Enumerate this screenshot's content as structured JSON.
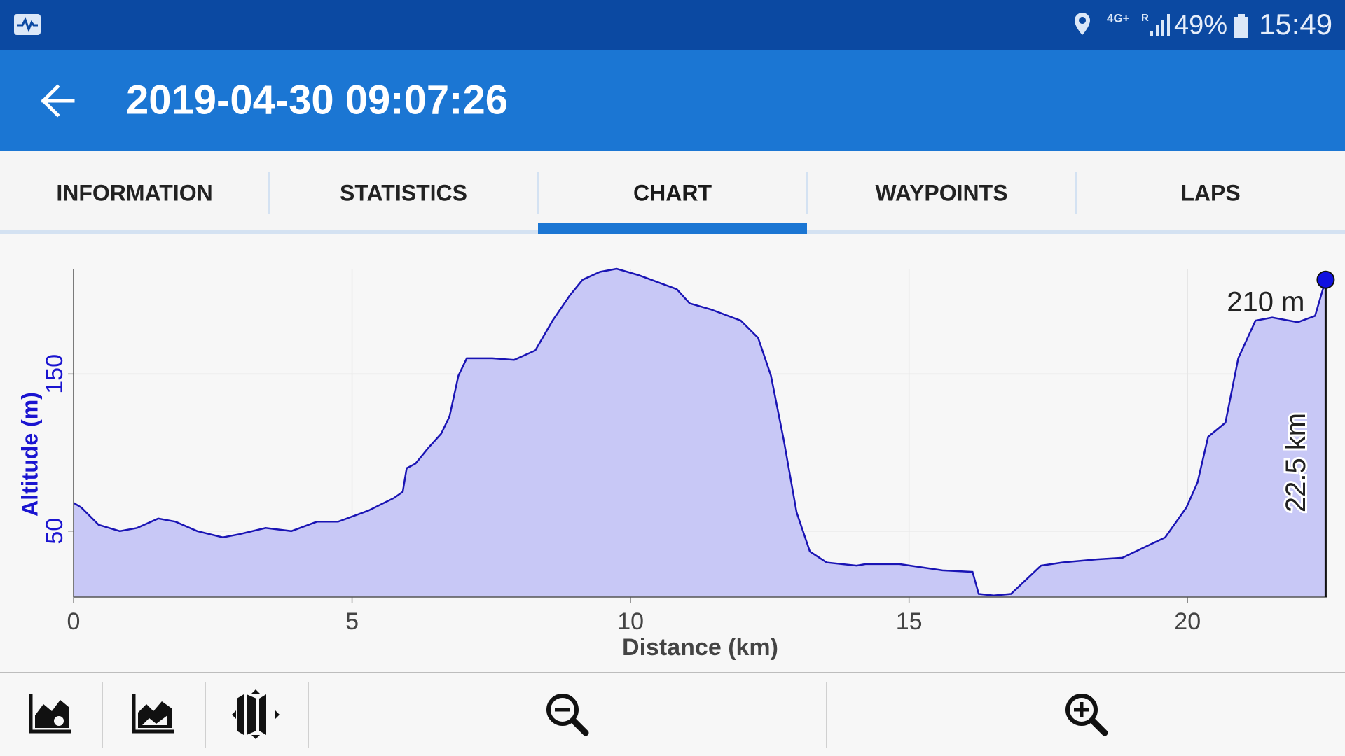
{
  "status_bar": {
    "network": "4G+",
    "roaming": "R",
    "battery": "49%",
    "time": "15:49"
  },
  "app_bar": {
    "title": "2019-04-30 09:07:26"
  },
  "tabs": {
    "items": [
      "INFORMATION",
      "STATISTICS",
      "CHART",
      "WAYPOINTS",
      "LAPS"
    ],
    "selected": 2
  },
  "chart_data": {
    "type": "area",
    "x_label": "Distance (km)",
    "y_label": "Altitude (m)",
    "x": [
      0,
      0.14,
      0.45,
      0.83,
      1.14,
      1.52,
      1.83,
      2.22,
      2.68,
      2.98,
      3.45,
      3.91,
      4.37,
      4.75,
      5.29,
      5.75,
      5.91,
      5.98,
      6.14,
      6.37,
      6.6,
      6.75,
      6.91,
      7.06,
      7.52,
      7.91,
      8.29,
      8.6,
      8.91,
      9.14,
      9.45,
      9.75,
      10.14,
      10.83,
      11.06,
      11.45,
      11.98,
      12.29,
      12.52,
      12.75,
      12.98,
      13.22,
      13.52,
      14.06,
      14.22,
      14.83,
      15.6,
      16.14,
      16.25,
      16.52,
      16.83,
      17.37,
      17.75,
      18.37,
      18.83,
      19.6,
      19.98,
      20.18,
      20.37,
      20.68,
      20.91,
      21.22,
      21.52,
      21.98,
      22.29,
      22.48
    ],
    "values": [
      68,
      65,
      54,
      50,
      52,
      58,
      56,
      50,
      46,
      48,
      52,
      50,
      56,
      56,
      63,
      71,
      75,
      90,
      93,
      103,
      112,
      123,
      149,
      160,
      160,
      159,
      165,
      184,
      200,
      210,
      215,
      217,
      213,
      204,
      195,
      191,
      184,
      173,
      149,
      108,
      62,
      37,
      30,
      28,
      29,
      29,
      25,
      24,
      10,
      9,
      10,
      28,
      30,
      32,
      33,
      46,
      65,
      81,
      110,
      119,
      160,
      184,
      186,
      183,
      187,
      210
    ],
    "color": "#1a14b4",
    "fill": "#c8c8f6",
    "xlim": [
      0,
      22.5
    ],
    "ylim": [
      8,
      217
    ],
    "xticks": [
      0,
      5,
      10,
      15,
      20
    ],
    "yticks": [
      50,
      150
    ],
    "grid": true,
    "annotations": [
      "210 m",
      "22.5 km"
    ]
  }
}
